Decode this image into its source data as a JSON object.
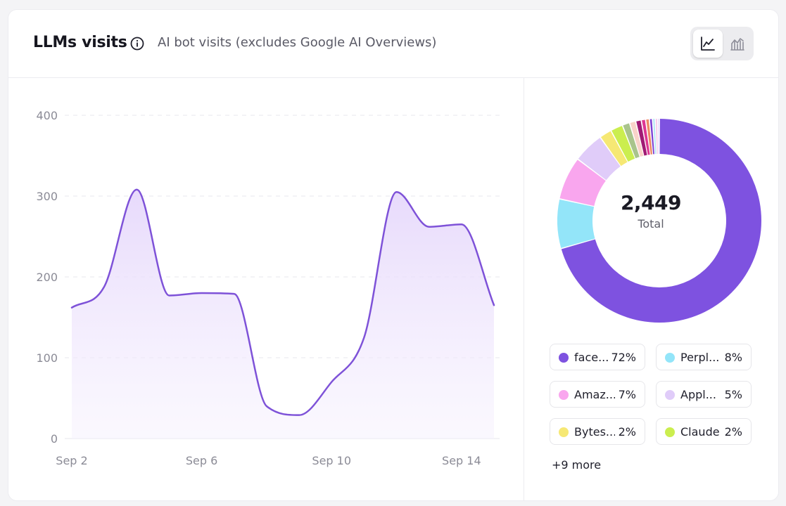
{
  "header": {
    "title": "LLMs visits",
    "subtitle": "AI bot visits (excludes Google AI Overviews)",
    "info_icon": "info-icon",
    "toggle": [
      {
        "icon": "line-chart-icon",
        "active": true
      },
      {
        "icon": "area-chart-icon",
        "active": false
      }
    ]
  },
  "colors": {
    "line": "#7e52d8",
    "area": "#e9dcfb"
  },
  "chart_data": [
    {
      "type": "area",
      "x_labels": [
        "Sep 2",
        "Sep 6",
        "Sep 10",
        "Sep 14"
      ],
      "x": [
        "Sep 2",
        "Sep 3",
        "Sep 4",
        "Sep 5",
        "Sep 6",
        "Sep 7",
        "Sep 8",
        "Sep 9",
        "Sep 10",
        "Sep 11",
        "Sep 12",
        "Sep 13",
        "Sep 14",
        "Sep 15"
      ],
      "values": [
        162,
        188,
        308,
        177,
        180,
        179,
        40,
        29,
        70,
        125,
        305,
        262,
        265,
        165
      ],
      "ylim": [
        0,
        400
      ],
      "y_ticks": [
        0,
        100,
        200,
        300,
        400
      ],
      "grid": true
    },
    {
      "type": "pie",
      "donut": true,
      "total": "2,449",
      "total_label": "Total",
      "slices": [
        {
          "label": "face...",
          "value": 72,
          "pct_label": "72%",
          "color": "#7e52e0"
        },
        {
          "label": "Perpl...",
          "value": 8,
          "pct_label": "8%",
          "color": "#93e5f9"
        },
        {
          "label": "Amaz...",
          "value": 7,
          "pct_label": "7%",
          "color": "#f9a6ee"
        },
        {
          "label": "Appl...",
          "value": 5,
          "pct_label": "5%",
          "color": "#e0ccf9"
        },
        {
          "label": "Bytes...",
          "value": 2,
          "pct_label": "2%",
          "color": "#f6e874"
        },
        {
          "label": "Claude",
          "value": 2,
          "pct_label": "2%",
          "color": "#cbee4f"
        },
        {
          "value": 1.2,
          "color": "#a9c48c"
        },
        {
          "value": 1.0,
          "color": "#f9d3c9"
        },
        {
          "value": 0.9,
          "color": "#a01b74"
        },
        {
          "value": 0.7,
          "color": "#de3792"
        },
        {
          "value": 0.6,
          "color": "#ee8a66"
        },
        {
          "value": 0.5,
          "color": "#7c3fd4"
        },
        {
          "value": 0.45,
          "color": "#b5e7f4"
        },
        {
          "value": 0.35,
          "color": "#f5b6e3"
        },
        {
          "value": 0.3,
          "color": "#ddd0f6"
        }
      ],
      "legend_more": "+9 more"
    }
  ]
}
